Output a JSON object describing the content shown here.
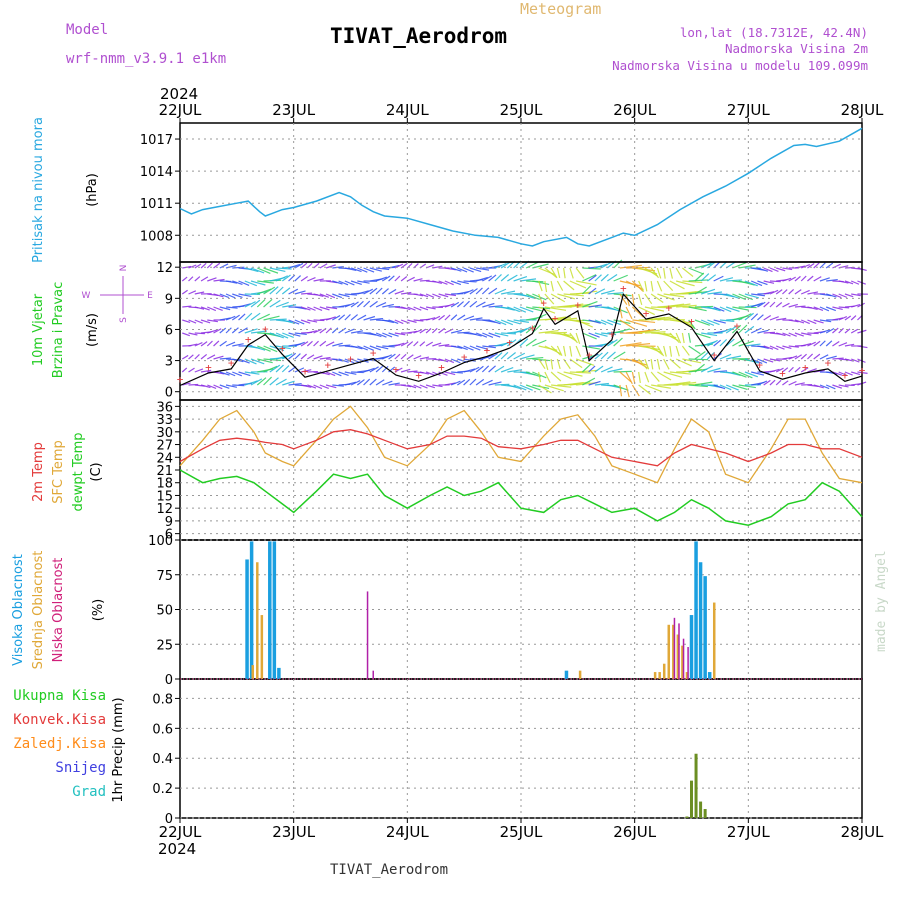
{
  "header": {
    "title": "TIVAT_Aerodrom",
    "subtitle": "Meteogram",
    "model_label": "Model",
    "model_name": "wrf-nmm_v3.9.1  e1km",
    "lonlat": "lon,lat (18.7312E, 42.4N)",
    "elevation": "Nadmorska Visina 2m",
    "model_elevation": "Nadmorska Visina u modelu 109.099m",
    "footer_title": "TIVAT_Aerodrom",
    "year": "2024",
    "watermark": "made by Angel"
  },
  "time_axis": {
    "labels": [
      "22JUL",
      "23JUL",
      "24JUL",
      "25JUL",
      "26JUL",
      "27JUL",
      "28JUL"
    ],
    "days": [
      0,
      1,
      2,
      3,
      4,
      5,
      6
    ]
  },
  "colors": {
    "pressure": "#29a8e0",
    "t2m": "#e33b3b",
    "sfc": "#e0a838",
    "dewpt": "#22cc22",
    "cloud_high": "#1a9fe0",
    "cloud_mid": "#e0a838",
    "cloud_low": "#b020a8",
    "precip": "#6b8e23",
    "wind_line": "#000000",
    "gust": "#e33b3b"
  },
  "chart_data": [
    {
      "type": "line",
      "panel": "pressure",
      "ylabel": "Pritisak na nivou mora",
      "unit": "(hPa)",
      "yticks": [
        1008,
        1011,
        1014,
        1017
      ],
      "ylim": [
        1005.5,
        1018.5
      ],
      "x": [
        0,
        0.1,
        0.2,
        0.35,
        0.5,
        0.6,
        0.7,
        0.75,
        0.8,
        0.9,
        1.0,
        1.2,
        1.4,
        1.5,
        1.6,
        1.7,
        1.8,
        2.0,
        2.2,
        2.4,
        2.6,
        2.8,
        3.0,
        3.1,
        3.2,
        3.4,
        3.5,
        3.6,
        3.8,
        3.9,
        4.0,
        4.2,
        4.4,
        4.6,
        4.8,
        5.0,
        5.2,
        5.4,
        5.5,
        5.6,
        5.8,
        6.0
      ],
      "series": [
        {
          "name": "",
          "values": [
            1010.5,
            1010.0,
            1010.4,
            1010.7,
            1011.0,
            1011.2,
            1010.2,
            1009.8,
            1010.0,
            1010.4,
            1010.6,
            1011.2,
            1012.0,
            1011.6,
            1010.8,
            1010.2,
            1009.8,
            1009.6,
            1009.0,
            1008.4,
            1008.0,
            1007.8,
            1007.2,
            1007.0,
            1007.4,
            1007.8,
            1007.2,
            1007.0,
            1007.8,
            1008.2,
            1008.0,
            1009.0,
            1010.4,
            1011.6,
            1012.6,
            1013.8,
            1015.2,
            1016.4,
            1016.5,
            1016.3,
            1016.8,
            1018.0
          ]
        }
      ]
    },
    {
      "type": "line",
      "panel": "wind",
      "ylabel": "10m Vjetar",
      "ylabel2": "Brzina i Pravac",
      "unit": "(m/s)",
      "compass": {
        "n": "N",
        "s": "S",
        "e": "E",
        "w": "W"
      },
      "yticks": [
        0,
        3,
        6,
        9,
        12
      ],
      "ylim": [
        -0.8,
        12.5
      ],
      "x": [
        0,
        0.25,
        0.45,
        0.6,
        0.75,
        0.9,
        1.1,
        1.3,
        1.5,
        1.7,
        1.9,
        2.1,
        2.3,
        2.5,
        2.7,
        2.9,
        3.1,
        3.2,
        3.3,
        3.5,
        3.6,
        3.8,
        3.9,
        4.1,
        4.3,
        4.5,
        4.7,
        4.9,
        5.1,
        5.3,
        5.5,
        5.7,
        5.85,
        6.0
      ],
      "series": [
        {
          "name": "",
          "values": [
            0.6,
            1.8,
            2.2,
            4.5,
            5.5,
            3.6,
            1.4,
            2.0,
            2.6,
            3.2,
            1.6,
            1.0,
            1.8,
            2.8,
            3.4,
            4.2,
            5.6,
            8.0,
            6.5,
            7.8,
            3.0,
            5.0,
            9.4,
            7.0,
            7.5,
            6.2,
            3.0,
            5.8,
            2.0,
            1.2,
            1.8,
            2.2,
            1.0,
            1.5
          ]
        }
      ]
    },
    {
      "type": "line",
      "panel": "temperature",
      "yticks": [
        6,
        9,
        12,
        15,
        18,
        21,
        24,
        27,
        30,
        33,
        36
      ],
      "ylim": [
        4.5,
        37.5
      ],
      "unit": "(C)",
      "x": [
        0,
        0.2,
        0.35,
        0.5,
        0.65,
        0.75,
        0.9,
        1.0,
        1.2,
        1.35,
        1.5,
        1.65,
        1.8,
        2.0,
        2.2,
        2.35,
        2.5,
        2.65,
        2.8,
        3.0,
        3.2,
        3.35,
        3.5,
        3.65,
        3.8,
        4.0,
        4.2,
        4.35,
        4.5,
        4.65,
        4.8,
        5.0,
        5.2,
        5.35,
        5.5,
        5.65,
        5.8,
        6.0
      ],
      "series": [
        {
          "name": "2m Temp",
          "values": [
            23,
            26,
            28,
            28.5,
            28,
            27.5,
            27,
            26,
            28,
            30,
            30.5,
            29.5,
            28,
            26,
            27,
            29,
            29,
            28.5,
            26.5,
            26,
            27,
            28,
            28,
            26,
            24,
            23,
            22,
            25,
            27,
            26,
            25,
            23,
            25,
            27,
            27,
            26,
            26,
            24
          ]
        },
        {
          "name": "SFC Temp",
          "values": [
            22,
            28,
            33,
            35,
            30,
            25,
            23,
            22,
            28,
            33,
            36,
            31,
            24,
            22,
            27,
            33,
            35,
            30,
            24,
            23,
            29,
            33,
            34,
            29,
            22,
            20,
            18,
            26,
            33,
            30,
            20,
            18,
            26,
            33,
            33,
            25,
            19,
            18
          ]
        },
        {
          "name": "dewpt Temp",
          "values": [
            21,
            18,
            19,
            19.5,
            18,
            16,
            13,
            11,
            16,
            20,
            19,
            20,
            15,
            12,
            15,
            17,
            15,
            16,
            18,
            12,
            11,
            14,
            15,
            13,
            11,
            12,
            9,
            11,
            14,
            12,
            9,
            8,
            10,
            13,
            14,
            18,
            16,
            10
          ]
        }
      ]
    },
    {
      "type": "bar",
      "panel": "cloud",
      "unit": "(%)",
      "yticks": [
        0,
        25,
        50,
        75,
        100
      ],
      "ylim": [
        0,
        100
      ],
      "series": [
        {
          "name": "Visoka Oblacnost",
          "x": [
            0.59,
            0.63,
            0.79,
            0.83,
            0.87,
            3.4,
            4.5,
            4.54,
            4.58,
            4.62,
            4.66
          ],
          "values": [
            86,
            99,
            99,
            99,
            8,
            6,
            46,
            99,
            84,
            74,
            5
          ]
        },
        {
          "name": "Srednja Oblacnost",
          "x": [
            0.64,
            0.68,
            0.72,
            3.52,
            4.18,
            4.22,
            4.26,
            4.3,
            4.34,
            4.38,
            4.42,
            4.46,
            4.7
          ],
          "values": [
            10,
            84,
            46,
            6,
            5,
            5,
            11,
            39,
            39,
            32,
            24,
            5,
            55
          ]
        },
        {
          "name": "Niska Oblacnost",
          "x": [
            1.65,
            1.7,
            4.35,
            4.39,
            4.43,
            4.47
          ],
          "values": [
            63,
            6,
            44,
            40,
            29,
            23
          ]
        }
      ]
    },
    {
      "type": "bar",
      "panel": "precip",
      "unit": "1hr Precip (mm)",
      "yticks": [
        0,
        0.2,
        0.4,
        0.6,
        0.8
      ],
      "ylim": [
        0,
        0.93
      ],
      "legend": [
        "Ukupna Kisa",
        "Konvek.Kisa",
        "Zaledj.Kisa",
        "Snijeg",
        "Grad"
      ],
      "legend_colors": [
        "#22cc22",
        "#e33b3b",
        "#ff8c1a",
        "#4040e0",
        "#22c0c0"
      ],
      "x": [
        4.46,
        4.5,
        4.54,
        4.58,
        4.62
      ],
      "values": [
        0.01,
        0.25,
        0.43,
        0.11,
        0.06
      ]
    }
  ]
}
